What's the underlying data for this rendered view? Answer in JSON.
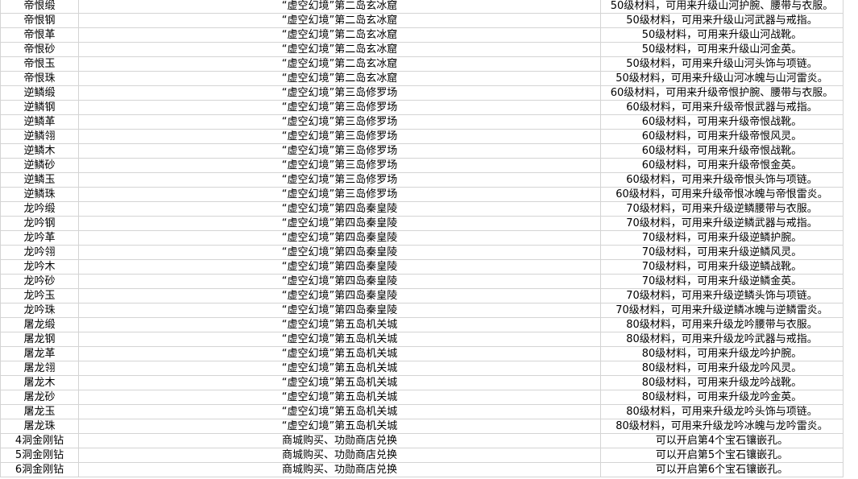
{
  "table": {
    "rows": [
      [
        "帝恨缎",
        "“虚空幻境”第二岛玄冰窟",
        "50级材料，可用来升级山河护腕、腰带与衣服。"
      ],
      [
        "帝恨钢",
        "“虚空幻境”第二岛玄冰窟",
        "50级材料，可用来升级山河武器与戒指。"
      ],
      [
        "帝恨革",
        "“虚空幻境”第二岛玄冰窟",
        "50级材料，可用来升级山河战靴。"
      ],
      [
        "帝恨砂",
        "“虚空幻境”第二岛玄冰窟",
        "50级材料，可用来升级山河金英。"
      ],
      [
        "帝恨玉",
        "“虚空幻境”第二岛玄冰窟",
        "50级材料，可用来升级山河头饰与项链。"
      ],
      [
        "帝恨珠",
        "“虚空幻境”第二岛玄冰窟",
        "50级材料，可用来升级山河冰魄与山河雷炎。"
      ],
      [
        "逆鳞缎",
        "“虚空幻境”第三岛修罗场",
        "60级材料，可用来升级帝恨护腕、腰带与衣服。"
      ],
      [
        "逆鳞钢",
        "“虚空幻境”第三岛修罗场",
        "60级材料，可用来升级帝恨武器与戒指。"
      ],
      [
        "逆鳞革",
        "“虚空幻境”第三岛修罗场",
        "60级材料，可用来升级帝恨战靴。"
      ],
      [
        "逆鳞翎",
        "“虚空幻境”第三岛修罗场",
        "60级材料，可用来升级帝恨风灵。"
      ],
      [
        "逆鳞木",
        "“虚空幻境”第三岛修罗场",
        "60级材料，可用来升级帝恨战靴。"
      ],
      [
        "逆鳞砂",
        "“虚空幻境”第三岛修罗场",
        "60级材料，可用来升级帝恨金英。"
      ],
      [
        "逆鳞玉",
        "“虚空幻境”第三岛修罗场",
        "60级材料，可用来升级帝恨头饰与项链。"
      ],
      [
        "逆鳞珠",
        "“虚空幻境”第三岛修罗场",
        "60级材料，可用来升级帝恨冰魄与帝恨雷炎。"
      ],
      [
        "龙吟缎",
        "“虚空幻境”第四岛秦皇陵",
        "70级材料，可用来升级逆鳞腰带与衣服。"
      ],
      [
        "龙吟钢",
        "“虚空幻境”第四岛秦皇陵",
        "70级材料，可用来升级逆鳞武器与戒指。"
      ],
      [
        "龙吟革",
        "“虚空幻境”第四岛秦皇陵",
        "70级材料，可用来升级逆鳞护腕。"
      ],
      [
        "龙吟翎",
        "“虚空幻境”第四岛秦皇陵",
        "70级材料，可用来升级逆鳞风灵。"
      ],
      [
        "龙吟木",
        "“虚空幻境”第四岛秦皇陵",
        "70级材料，可用来升级逆鳞战靴。"
      ],
      [
        "龙吟砂",
        "“虚空幻境”第四岛秦皇陵",
        "70级材料，可用来升级逆鳞金英。"
      ],
      [
        "龙吟玉",
        "“虚空幻境”第四岛秦皇陵",
        "70级材料，可用来升级逆鳞头饰与项链。"
      ],
      [
        "龙吟珠",
        "“虚空幻境”第四岛秦皇陵",
        "70级材料，可用来升级逆鳞冰魄与逆鳞雷炎。"
      ],
      [
        "屠龙缎",
        "“虚空幻境”第五岛机关城",
        "80级材料，可用来升级龙吟腰带与衣服。"
      ],
      [
        "屠龙钢",
        "“虚空幻境”第五岛机关城",
        "80级材料，可用来升级龙吟武器与戒指。"
      ],
      [
        "屠龙革",
        "“虚空幻境”第五岛机关城",
        "80级材料，可用来升级龙吟护腕。"
      ],
      [
        "屠龙翎",
        "“虚空幻境”第五岛机关城",
        "80级材料，可用来升级龙吟风灵。"
      ],
      [
        "屠龙木",
        "“虚空幻境”第五岛机关城",
        "80级材料，可用来升级龙吟战靴。"
      ],
      [
        "屠龙砂",
        "“虚空幻境”第五岛机关城",
        "80级材料，可用来升级龙吟金英。"
      ],
      [
        "屠龙玉",
        "“虚空幻境”第五岛机关城",
        "80级材料，可用来升级龙吟头饰与项链。"
      ],
      [
        "屠龙珠",
        "“虚空幻境”第五岛机关城",
        "80级材料，可用来升级龙吟冰魄与龙吟雷炎。"
      ],
      [
        "4洞金刚钻",
        "商城购买、功勋商店兑换",
        "可以开启第4个宝石镶嵌孔。"
      ],
      [
        "5洞金刚钻",
        "商城购买、功勋商店兑换",
        "可以开启第5个宝石镶嵌孔。"
      ],
      [
        "6洞金刚钻",
        "商城购买、功勋商店兑换",
        "可以开启第6个宝石镶嵌孔。"
      ]
    ]
  }
}
